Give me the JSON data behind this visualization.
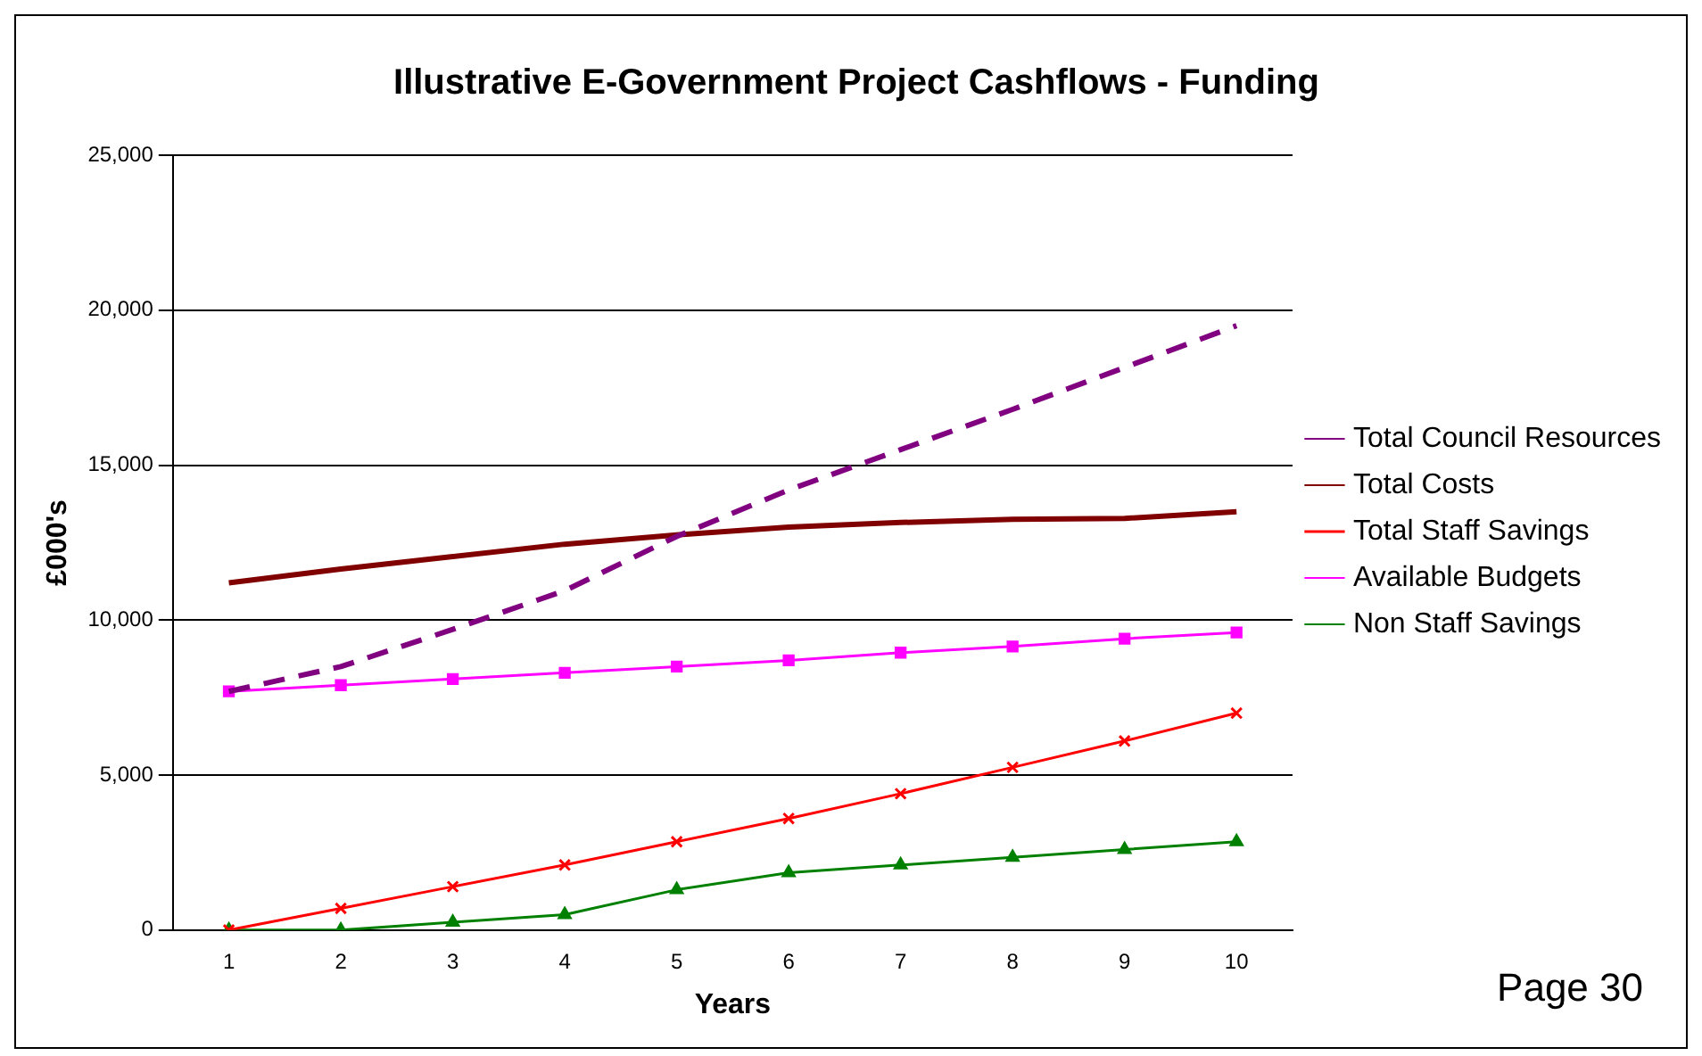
{
  "chart_data": {
    "type": "line",
    "title": "Illustrative E-Government Project Cashflows - Funding",
    "xlabel": "Years",
    "ylabel": "£000's",
    "categories": [
      "1",
      "2",
      "3",
      "4",
      "5",
      "6",
      "7",
      "8",
      "9",
      "10"
    ],
    "series": [
      {
        "name": "Total Council Resources",
        "color": "#800080",
        "line_style": "dashed",
        "marker": "none",
        "values": [
          7700,
          8500,
          9700,
          10950,
          12700,
          14200,
          15500,
          16800,
          18150,
          19500
        ]
      },
      {
        "name": "Total Costs",
        "color": "#800000",
        "line_style": "solid",
        "marker": "none",
        "values": [
          11200,
          11650,
          12050,
          12450,
          12750,
          13000,
          13150,
          13250,
          13280,
          13500
        ]
      },
      {
        "name": "Total Staff Savings",
        "color": "#ff0000",
        "line_style": "solid",
        "marker": "cross",
        "values": [
          0,
          700,
          1400,
          2100,
          2850,
          3600,
          4400,
          5250,
          6100,
          7000
        ]
      },
      {
        "name": "Available Budgets",
        "color": "#ff00ff",
        "line_style": "solid",
        "marker": "square",
        "values": [
          7700,
          7900,
          8100,
          8300,
          8500,
          8700,
          8950,
          9150,
          9400,
          9600
        ]
      },
      {
        "name": "Non Staff Savings",
        "color": "#008000",
        "line_style": "solid",
        "marker": "triangle",
        "values": [
          0,
          0,
          250,
          500,
          1300,
          1850,
          2100,
          2350,
          2600,
          2850
        ]
      }
    ],
    "ylim": [
      0,
      25000
    ],
    "yticks": [
      0,
      {
        "value": 5000,
        "label": "5,000"
      },
      {
        "value": 10000,
        "label": "10,000"
      },
      {
        "value": 15000,
        "label": "15,000"
      },
      {
        "value": 20000,
        "label": "20,000"
      },
      {
        "value": 25000,
        "label": "25,000"
      }
    ],
    "grid": "y",
    "legend": "right",
    "annotations": [
      "Page 30"
    ]
  }
}
